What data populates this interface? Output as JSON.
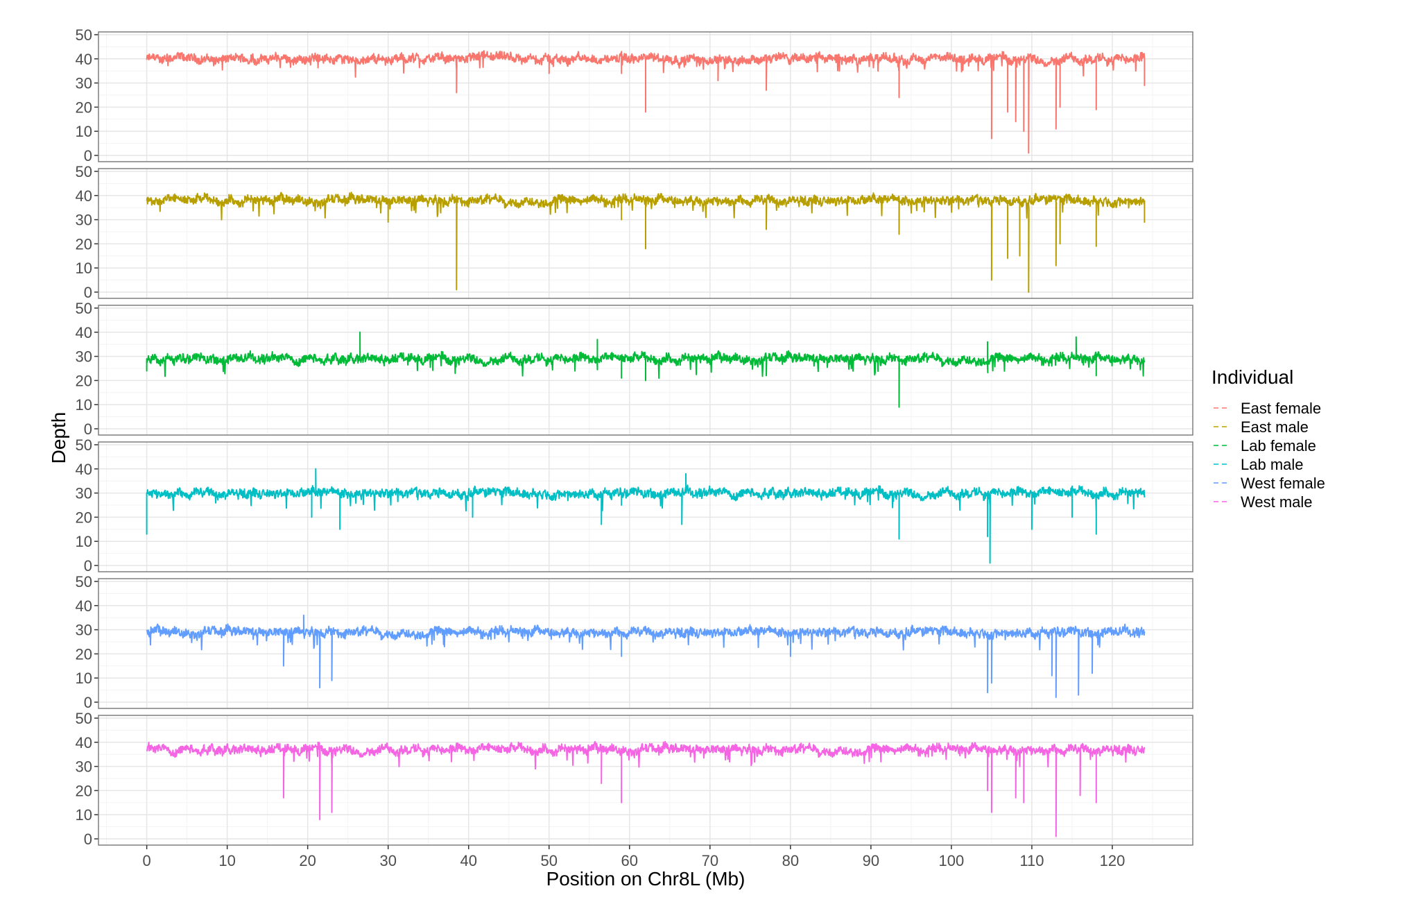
{
  "chart_data": {
    "type": "line",
    "facets": "stacked panels, one per individual, shared x axis",
    "xlabel": "Position on Chr8L (Mb)",
    "ylabel": "Depth",
    "xlim": [
      -6,
      130
    ],
    "ylim": [
      0,
      50
    ],
    "x_ticks": [
      0,
      10,
      20,
      30,
      40,
      50,
      60,
      70,
      80,
      90,
      100,
      110,
      120
    ],
    "y_ticks": [
      0,
      10,
      20,
      30,
      40,
      50
    ],
    "x_range_data": [
      0,
      124
    ],
    "grid": true,
    "legend": {
      "title": "Individual",
      "position": "right",
      "line_style": "dashed"
    },
    "series": [
      {
        "name": "East female",
        "color": "#F8766D",
        "baseline_depth": 40,
        "excursions": [
          [
            38.5,
            26
          ],
          [
            50,
            34
          ],
          [
            59,
            34
          ],
          [
            62,
            18
          ],
          [
            71,
            31
          ],
          [
            77,
            27
          ],
          [
            93.5,
            24
          ],
          [
            105,
            7
          ],
          [
            107,
            18
          ],
          [
            108,
            14
          ],
          [
            109,
            10
          ],
          [
            109.6,
            1
          ],
          [
            113,
            11
          ],
          [
            113.5,
            20
          ],
          [
            118,
            19
          ],
          [
            124,
            29
          ]
        ]
      },
      {
        "name": "East male",
        "color": "#B79F00",
        "baseline_depth": 38,
        "excursions": [
          [
            30,
            29
          ],
          [
            38.5,
            1
          ],
          [
            59,
            30
          ],
          [
            62,
            18
          ],
          [
            77,
            26
          ],
          [
            93.5,
            24
          ],
          [
            105,
            5
          ],
          [
            107,
            14
          ],
          [
            108.5,
            15
          ],
          [
            109.6,
            0
          ],
          [
            113,
            11
          ],
          [
            113.5,
            20
          ],
          [
            118,
            19
          ],
          [
            124,
            29
          ]
        ]
      },
      {
        "name": "Lab female",
        "color": "#00BA38",
        "baseline_depth": 29,
        "excursions": [
          [
            0,
            24
          ],
          [
            26.5,
            40
          ],
          [
            56,
            37
          ],
          [
            59,
            21
          ],
          [
            62,
            20
          ],
          [
            77,
            22
          ],
          [
            93.5,
            9
          ],
          [
            104.5,
            36
          ],
          [
            115.5,
            38
          ],
          [
            118,
            22
          ]
        ]
      },
      {
        "name": "Lab male",
        "color": "#00BFC4",
        "baseline_depth": 30,
        "excursions": [
          [
            0,
            13
          ],
          [
            20.5,
            20
          ],
          [
            21,
            40
          ],
          [
            24,
            15
          ],
          [
            40.5,
            20
          ],
          [
            56.5,
            17
          ],
          [
            59,
            25
          ],
          [
            66.5,
            17
          ],
          [
            67,
            38
          ],
          [
            93.5,
            11
          ],
          [
            104.5,
            12
          ],
          [
            104.8,
            1
          ],
          [
            110,
            15
          ],
          [
            115,
            20
          ],
          [
            118,
            13
          ]
        ]
      },
      {
        "name": "West female",
        "color": "#619CFF",
        "baseline_depth": 29,
        "excursions": [
          [
            17,
            15
          ],
          [
            19.5,
            36
          ],
          [
            21.5,
            6
          ],
          [
            23,
            9
          ],
          [
            37,
            23
          ],
          [
            59,
            19
          ],
          [
            80,
            19
          ],
          [
            104.5,
            4
          ],
          [
            105,
            8
          ],
          [
            112.5,
            11
          ],
          [
            113,
            2
          ],
          [
            115.8,
            3
          ],
          [
            117.5,
            12
          ]
        ]
      },
      {
        "name": "West male",
        "color": "#F564E3",
        "baseline_depth": 37,
        "excursions": [
          [
            17,
            17
          ],
          [
            21.5,
            8
          ],
          [
            23,
            11
          ],
          [
            56.5,
            23
          ],
          [
            59,
            15
          ],
          [
            104.5,
            20
          ],
          [
            105,
            11
          ],
          [
            108,
            17
          ],
          [
            109,
            15
          ],
          [
            113,
            1
          ],
          [
            116,
            18
          ],
          [
            118,
            15
          ]
        ]
      }
    ]
  }
}
